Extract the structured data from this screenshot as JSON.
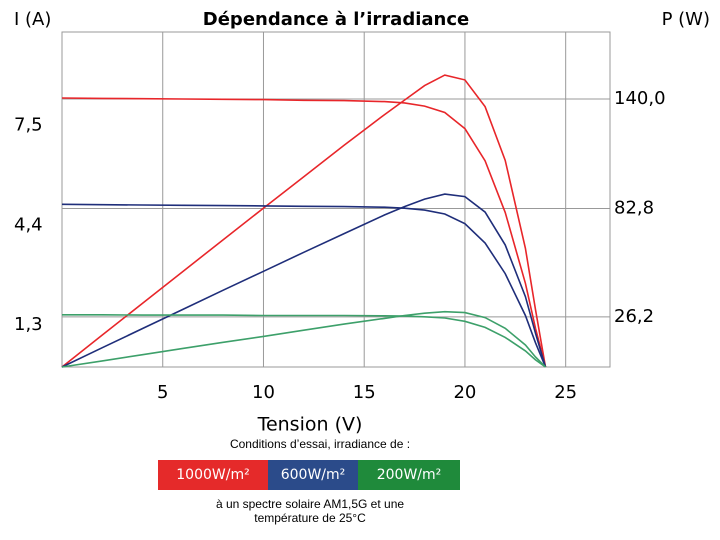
{
  "chart_data": {
    "type": "line",
    "title": "Dépendance à l’irradiance",
    "ylabel": "I (A)",
    "y2label": "P (W)",
    "xlabel": "Tension (V)",
    "legend_title": "Conditions d’essai, irradiance de :",
    "note": [
      "à un spectre solaire AM1,5G et une",
      "température de 25°C"
    ],
    "xlim": [
      0,
      27.2
    ],
    "xticks": [
      5,
      10,
      15,
      20,
      25
    ],
    "ylim": [
      0,
      10.4
    ],
    "yticks": [
      {
        "value": 1.3,
        "label": "1,3"
      },
      {
        "value": 4.4,
        "label": "4,4"
      },
      {
        "value": 7.5,
        "label": "7,5"
      }
    ],
    "y2lim": [
      0,
      175
    ],
    "y2ticks": [
      {
        "value": 26.2,
        "label": "26,2"
      },
      {
        "value": 82.8,
        "label": "82,8"
      },
      {
        "value": 140,
        "label": "140,0"
      }
    ],
    "grid": true,
    "x": [
      0,
      2,
      4,
      6,
      8,
      10,
      12,
      14,
      16,
      17,
      18,
      19,
      20,
      21,
      22,
      23,
      23.5,
      24
    ],
    "series": [
      {
        "name": "1000W/m²",
        "color": "#e8262a",
        "legend_color": "#e52a2a",
        "current": [
          8.35,
          8.34,
          8.33,
          8.32,
          8.31,
          8.3,
          8.28,
          8.27,
          8.24,
          8.2,
          8.1,
          7.9,
          7.4,
          6.4,
          4.8,
          2.6,
          1.2,
          0
        ],
        "power": [
          0,
          16.7,
          33.3,
          49.9,
          66.5,
          83,
          99.4,
          115.8,
          131.8,
          139.4,
          147,
          152.5,
          150,
          136,
          108,
          62,
          30,
          0
        ]
      },
      {
        "name": "600W/m²",
        "color": "#1f2e7a",
        "legend_color": "#2b4b8a",
        "current": [
          5.05,
          5.04,
          5.03,
          5.02,
          5.01,
          5.0,
          4.99,
          4.98,
          4.96,
          4.93,
          4.87,
          4.75,
          4.45,
          3.85,
          2.9,
          1.6,
          0.75,
          0
        ],
        "power": [
          0,
          10.1,
          20.1,
          30.1,
          40.1,
          50,
          59.9,
          69.7,
          79.4,
          83.8,
          87.7,
          90.3,
          89,
          80.9,
          63.8,
          36.8,
          17.6,
          0
        ]
      },
      {
        "name": "200W/m²",
        "color": "#3da06a",
        "legend_color": "#1f8a3b",
        "current": [
          1.62,
          1.62,
          1.61,
          1.61,
          1.61,
          1.6,
          1.6,
          1.6,
          1.59,
          1.58,
          1.56,
          1.52,
          1.42,
          1.23,
          0.92,
          0.5,
          0.22,
          0
        ],
        "power": [
          0,
          3.2,
          6.4,
          9.7,
          12.9,
          16,
          19.2,
          22.4,
          25.4,
          26.9,
          28.1,
          28.9,
          28.4,
          25.8,
          20.2,
          11.5,
          5.2,
          0
        ]
      }
    ]
  }
}
